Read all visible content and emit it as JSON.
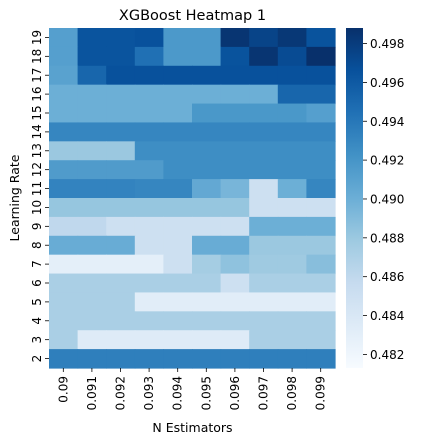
{
  "chart_data": {
    "type": "heatmap",
    "title": "XGBoost Heatmap 1",
    "xlabel": "N Estimators",
    "ylabel": "Learning Rate",
    "x_categories": [
      "0.09",
      "0.091",
      "0.092",
      "0.093",
      "0.094",
      "0.095",
      "0.096",
      "0.097",
      "0.098",
      "0.099"
    ],
    "y_categories": [
      "19",
      "18",
      "17",
      "16",
      "15",
      "14",
      "13",
      "12",
      "11",
      "10",
      "9",
      "8",
      "7",
      "6",
      "5",
      "4",
      "3",
      "2"
    ],
    "values": [
      [
        0.4912,
        0.4964,
        0.4964,
        0.4966,
        0.4917,
        0.4917,
        0.4985,
        0.4975,
        0.4983,
        0.4965
      ],
      [
        0.4912,
        0.4964,
        0.4964,
        0.4945,
        0.4917,
        0.4917,
        0.4965,
        0.4985,
        0.497,
        0.4988
      ],
      [
        0.491,
        0.4952,
        0.4966,
        0.4966,
        0.4966,
        0.4966,
        0.4966,
        0.4966,
        0.4966,
        0.4966
      ],
      [
        0.49,
        0.49,
        0.49,
        0.49,
        0.49,
        0.49,
        0.49,
        0.49,
        0.4952,
        0.4952
      ],
      [
        0.49,
        0.49,
        0.49,
        0.49,
        0.49,
        0.4918,
        0.4918,
        0.4918,
        0.4918,
        0.4912
      ],
      [
        0.493,
        0.493,
        0.493,
        0.493,
        0.493,
        0.493,
        0.493,
        0.493,
        0.493,
        0.493
      ],
      [
        0.488,
        0.488,
        0.488,
        0.4925,
        0.4925,
        0.4925,
        0.4925,
        0.4925,
        0.4925,
        0.4925
      ],
      [
        0.4915,
        0.4915,
        0.4915,
        0.4915,
        0.4925,
        0.4925,
        0.4925,
        0.4925,
        0.4925,
        0.4925
      ],
      [
        0.4932,
        0.4932,
        0.4932,
        0.493,
        0.493,
        0.4905,
        0.4895,
        0.485,
        0.49,
        0.493
      ],
      [
        0.4882,
        0.4882,
        0.4882,
        0.4882,
        0.4882,
        0.4882,
        0.4882,
        0.485,
        0.485,
        0.485
      ],
      [
        0.486,
        0.486,
        0.485,
        0.485,
        0.485,
        0.485,
        0.485,
        0.49,
        0.49,
        0.49
      ],
      [
        0.4902,
        0.4902,
        0.4902,
        0.485,
        0.485,
        0.4902,
        0.4902,
        0.488,
        0.488,
        0.488
      ],
      [
        0.483,
        0.483,
        0.483,
        0.483,
        0.485,
        0.4875,
        0.4885,
        0.4878,
        0.4878,
        0.4888
      ],
      [
        0.4872,
        0.4872,
        0.4872,
        0.4872,
        0.4872,
        0.4872,
        0.485,
        0.4872,
        0.4872,
        0.4872
      ],
      [
        0.4872,
        0.4872,
        0.4872,
        0.4832,
        0.4832,
        0.4832,
        0.4832,
        0.4832,
        0.4832,
        0.4832
      ],
      [
        0.4872,
        0.4872,
        0.4872,
        0.4872,
        0.4872,
        0.4872,
        0.4872,
        0.4872,
        0.4872,
        0.4872
      ],
      [
        0.4872,
        0.4835,
        0.4835,
        0.4835,
        0.4835,
        0.4835,
        0.4835,
        0.4872,
        0.4872,
        0.4872
      ],
      [
        0.4935,
        0.4935,
        0.4935,
        0.4935,
        0.4935,
        0.4935,
        0.4935,
        0.4935,
        0.4935,
        0.4935
      ]
    ],
    "colorbar": {
      "min": 0.4813,
      "max": 0.4988,
      "ticks": [
        "0.482",
        "0.484",
        "0.486",
        "0.488",
        "0.490",
        "0.492",
        "0.494",
        "0.496",
        "0.498"
      ],
      "colormap": "Blues"
    }
  }
}
